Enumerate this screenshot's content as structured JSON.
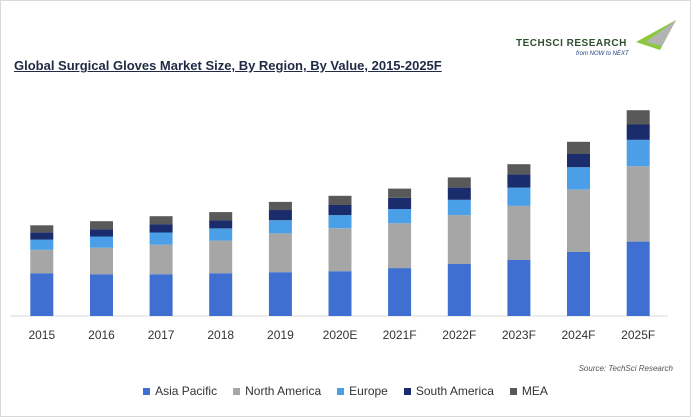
{
  "chart_data": {
    "type": "bar",
    "stacked": true,
    "title": "Global Surgical Gloves Market Size, By Region, By Value, 2015-2025F",
    "categories": [
      "2015",
      "2016",
      "2017",
      "2018",
      "2019",
      "2020E",
      "2021F",
      "2022F",
      "2023F",
      "2024F",
      "2025F"
    ],
    "series": [
      {
        "name": "Asia Pacific",
        "color": "#3f6fd1",
        "values": [
          42,
          41,
          41,
          42,
          43,
          44,
          47,
          51,
          55,
          63,
          73
        ]
      },
      {
        "name": "North America",
        "color": "#a6a6a6",
        "values": [
          23,
          26,
          29,
          32,
          38,
          42,
          44,
          48,
          53,
          61,
          74
        ]
      },
      {
        "name": "Europe",
        "color": "#4a9fe6",
        "values": [
          10,
          11,
          12,
          12,
          13,
          13,
          14,
          15,
          18,
          22,
          26
        ]
      },
      {
        "name": "South America",
        "color": "#1a2c6b",
        "values": [
          7,
          7,
          8,
          8,
          10,
          10,
          11,
          12,
          13,
          13,
          15
        ]
      },
      {
        "name": "MEA",
        "color": "#595959",
        "values": [
          7,
          8,
          8,
          8,
          8,
          9,
          9,
          10,
          10,
          12,
          14
        ]
      }
    ],
    "ylim": [
      0,
      212
    ],
    "grid": false,
    "legend_position": "bottom",
    "xlabel": "",
    "ylabel": ""
  },
  "source": "Source: TechSci Research",
  "logo": {
    "name": "TECHSCI RESEARCH",
    "tagline": "from NOW to NEXT"
  }
}
